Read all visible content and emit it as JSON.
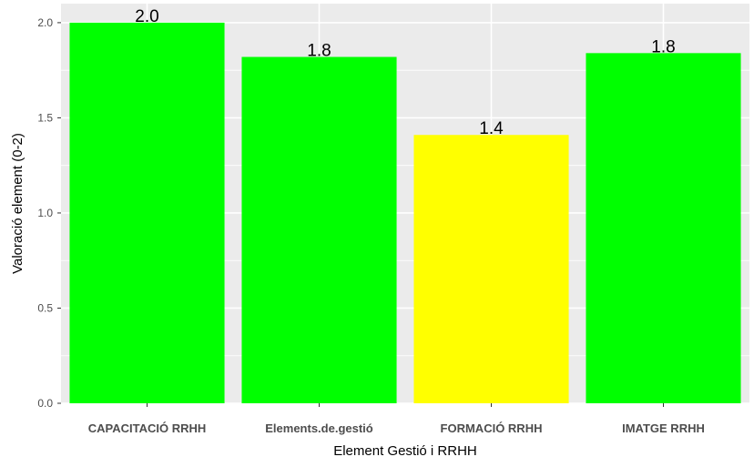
{
  "chart_data": {
    "type": "bar",
    "title": "",
    "xlabel": "Element Gestió i RRHH",
    "ylabel": "Valoració element (0-2)",
    "categories": [
      "CAPACITACIÓ RRHH",
      "Elements.de.gestió",
      "FORMACIÓ RRHH",
      "IMATGE RRHH"
    ],
    "values": [
      2.0,
      1.82,
      1.41,
      1.84
    ],
    "data_labels": [
      "2.0",
      "1.8",
      "1.4",
      "1.8"
    ],
    "bar_colors": [
      "#00ff00",
      "#00ff00",
      "#ffff00",
      "#00ff00"
    ],
    "ylim": [
      0,
      2.1
    ],
    "yticks": [
      0.0,
      0.5,
      1.0,
      1.5,
      2.0
    ],
    "ytick_labels": [
      "0.0",
      "0.5",
      "1.0",
      "1.5",
      "2.0"
    ],
    "grid": true,
    "legend": "none",
    "panel_background": "#ebebeb",
    "grid_color": "#ffffff"
  }
}
